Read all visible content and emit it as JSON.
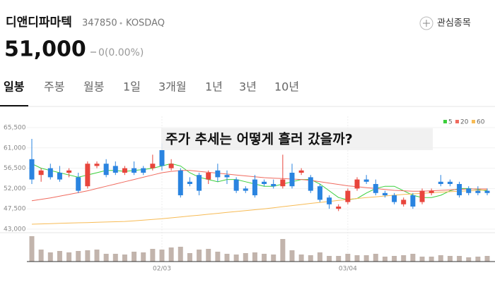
{
  "header": {
    "name": "디앤디파마텍",
    "code": "347850",
    "market": "KOSDAQ",
    "price": "51,000",
    "change": "0(0.00%)",
    "follow": "관심종목"
  },
  "tabs": [
    "일봉",
    "주봉",
    "월봉",
    "1일",
    "3개월",
    "1년",
    "3년",
    "10년"
  ],
  "chart_data": {
    "type": "candlestick",
    "title": "주가 추세는 어떻게 흘러 갔을까?",
    "categories": [
      null,
      null,
      null,
      null,
      null,
      null,
      null,
      null,
      null,
      null,
      null,
      null,
      null,
      null,
      "02/03",
      null,
      null,
      null,
      null,
      null,
      null,
      null,
      null,
      null,
      null,
      null,
      null,
      null,
      null,
      null,
      null,
      null,
      null,
      null,
      "03/04",
      null,
      null,
      null,
      null,
      null,
      null,
      null,
      null,
      null,
      null,
      null,
      null,
      null,
      null,
      null
    ],
    "open": [
      58500,
      55000,
      56500,
      55500,
      55500,
      54500,
      52500,
      57000,
      57500,
      57000,
      55500,
      56500,
      56500,
      56500,
      60500,
      56500,
      56000,
      53500,
      55000,
      54000,
      56000,
      55000,
      54000,
      52000,
      54000,
      53500,
      53000,
      52500,
      55500,
      55500,
      54500,
      52500,
      50000,
      47500,
      49000,
      52000,
      54000,
      53000,
      51000,
      50500,
      48500,
      50500,
      49000,
      51000,
      53500,
      53500,
      53000,
      52000,
      51500,
      51500
    ],
    "close": [
      54000,
      56000,
      54500,
      54000,
      56000,
      51500,
      57500,
      57500,
      55000,
      55500,
      56500,
      55500,
      55500,
      57500,
      57000,
      57500,
      50500,
      53000,
      51500,
      55500,
      54500,
      54500,
      51500,
      51500,
      50500,
      53000,
      52500,
      54000,
      52500,
      56000,
      51500,
      49500,
      48500,
      48000,
      51500,
      54000,
      53500,
      51000,
      50500,
      49000,
      49500,
      48000,
      51500,
      51500,
      53000,
      53000,
      50500,
      51000,
      51000,
      51000
    ],
    "high": [
      63000,
      56500,
      57500,
      57000,
      56500,
      55500,
      58000,
      58000,
      58500,
      58000,
      57000,
      58000,
      57000,
      59500,
      62000,
      58500,
      56500,
      54500,
      55500,
      56000,
      57500,
      56000,
      54500,
      52500,
      55000,
      54000,
      54000,
      59500,
      57500,
      56500,
      55000,
      53000,
      50500,
      48500,
      52000,
      54500,
      55000,
      54000,
      51500,
      51000,
      50000,
      51000,
      52000,
      52000,
      55000,
      54000,
      53500,
      52500,
      52500,
      52000
    ],
    "low": [
      53000,
      53500,
      54000,
      53500,
      54500,
      51000,
      52000,
      56500,
      54500,
      55000,
      55000,
      55000,
      55000,
      56000,
      56000,
      56000,
      50000,
      52500,
      50500,
      53000,
      53500,
      53000,
      51000,
      51000,
      50000,
      52500,
      52000,
      52000,
      52000,
      55000,
      51000,
      49000,
      47500,
      47000,
      48500,
      51500,
      53000,
      50500,
      50000,
      48500,
      48000,
      47500,
      48500,
      50500,
      52500,
      52500,
      50000,
      50500,
      50500,
      50500
    ],
    "up_color": "#e8453c",
    "down_color": "#2a84e0",
    "volume": [
      36,
      17,
      13,
      15,
      13,
      15,
      16,
      17,
      11,
      11,
      10,
      14,
      13,
      18,
      17,
      20,
      21,
      12,
      17,
      18,
      14,
      11,
      10,
      12,
      13,
      11,
      10,
      32,
      16,
      10,
      9,
      13,
      8,
      8,
      11,
      9,
      9,
      11,
      7,
      8,
      9,
      11,
      7,
      7,
      9,
      8,
      8,
      6,
      7,
      8
    ],
    "volume_color": "#c2b4ac",
    "series": [
      {
        "name": "5",
        "color": "#3bcf3b",
        "values": [
          57500,
          56500,
          56000,
          55500,
          55000,
          54500,
          55000,
          55500,
          56000,
          56000,
          55800,
          56000,
          56200,
          56500,
          57000,
          57500,
          57000,
          55500,
          54500,
          54000,
          53500,
          54000,
          54000,
          53500,
          53000,
          52500,
          52500,
          53000,
          53500,
          54000,
          54000,
          53000,
          51500,
          50000,
          49500,
          49800,
          51000,
          52000,
          52500,
          52500,
          51500,
          50500,
          50000,
          50000,
          50500,
          51500,
          52000,
          52000,
          51800,
          51500
        ]
      },
      {
        "name": "20",
        "color": "#f06a5e",
        "values": [
          49300,
          49600,
          49900,
          50300,
          50700,
          51100,
          51500,
          52000,
          52500,
          53000,
          53500,
          54000,
          54500,
          55000,
          55500,
          55800,
          56000,
          56000,
          55800,
          55600,
          55400,
          55200,
          55000,
          54800,
          54600,
          54400,
          54300,
          54200,
          54100,
          54000,
          53800,
          53500,
          53200,
          52900,
          52600,
          52400,
          52200,
          52000,
          51800,
          51600,
          51500,
          51400,
          51400,
          51500,
          51600,
          51700,
          51800,
          51900,
          51900,
          51900
        ]
      },
      {
        "name": "60",
        "color": "#f7bb55",
        "values": [
          44100,
          44160,
          44220,
          44280,
          44340,
          44400,
          44460,
          44520,
          44580,
          44640,
          44700,
          44850,
          45000,
          45150,
          45300,
          45500,
          45700,
          45900,
          46100,
          46300,
          46500,
          46700,
          46900,
          47100,
          47300,
          47500,
          47740,
          47980,
          48220,
          48460,
          48700,
          48920,
          49140,
          49360,
          49580,
          49800,
          49980,
          50160,
          50340,
          50520,
          50700,
          50820,
          50940,
          51060,
          51180,
          51300,
          51400,
          51500,
          51600,
          51700
        ]
      }
    ],
    "ylim": [
      43000,
      65500
    ],
    "yticks": [
      {
        "value": 43000,
        "label": "43,000"
      },
      {
        "value": 47500,
        "label": "47,500"
      },
      {
        "value": 52000,
        "label": "52,000"
      },
      {
        "value": 56500,
        "label": "56,500"
      },
      {
        "value": 61000,
        "label": "61,000"
      },
      {
        "value": 65500,
        "label": "65,500"
      }
    ],
    "grid": true,
    "legend": "top-right"
  }
}
